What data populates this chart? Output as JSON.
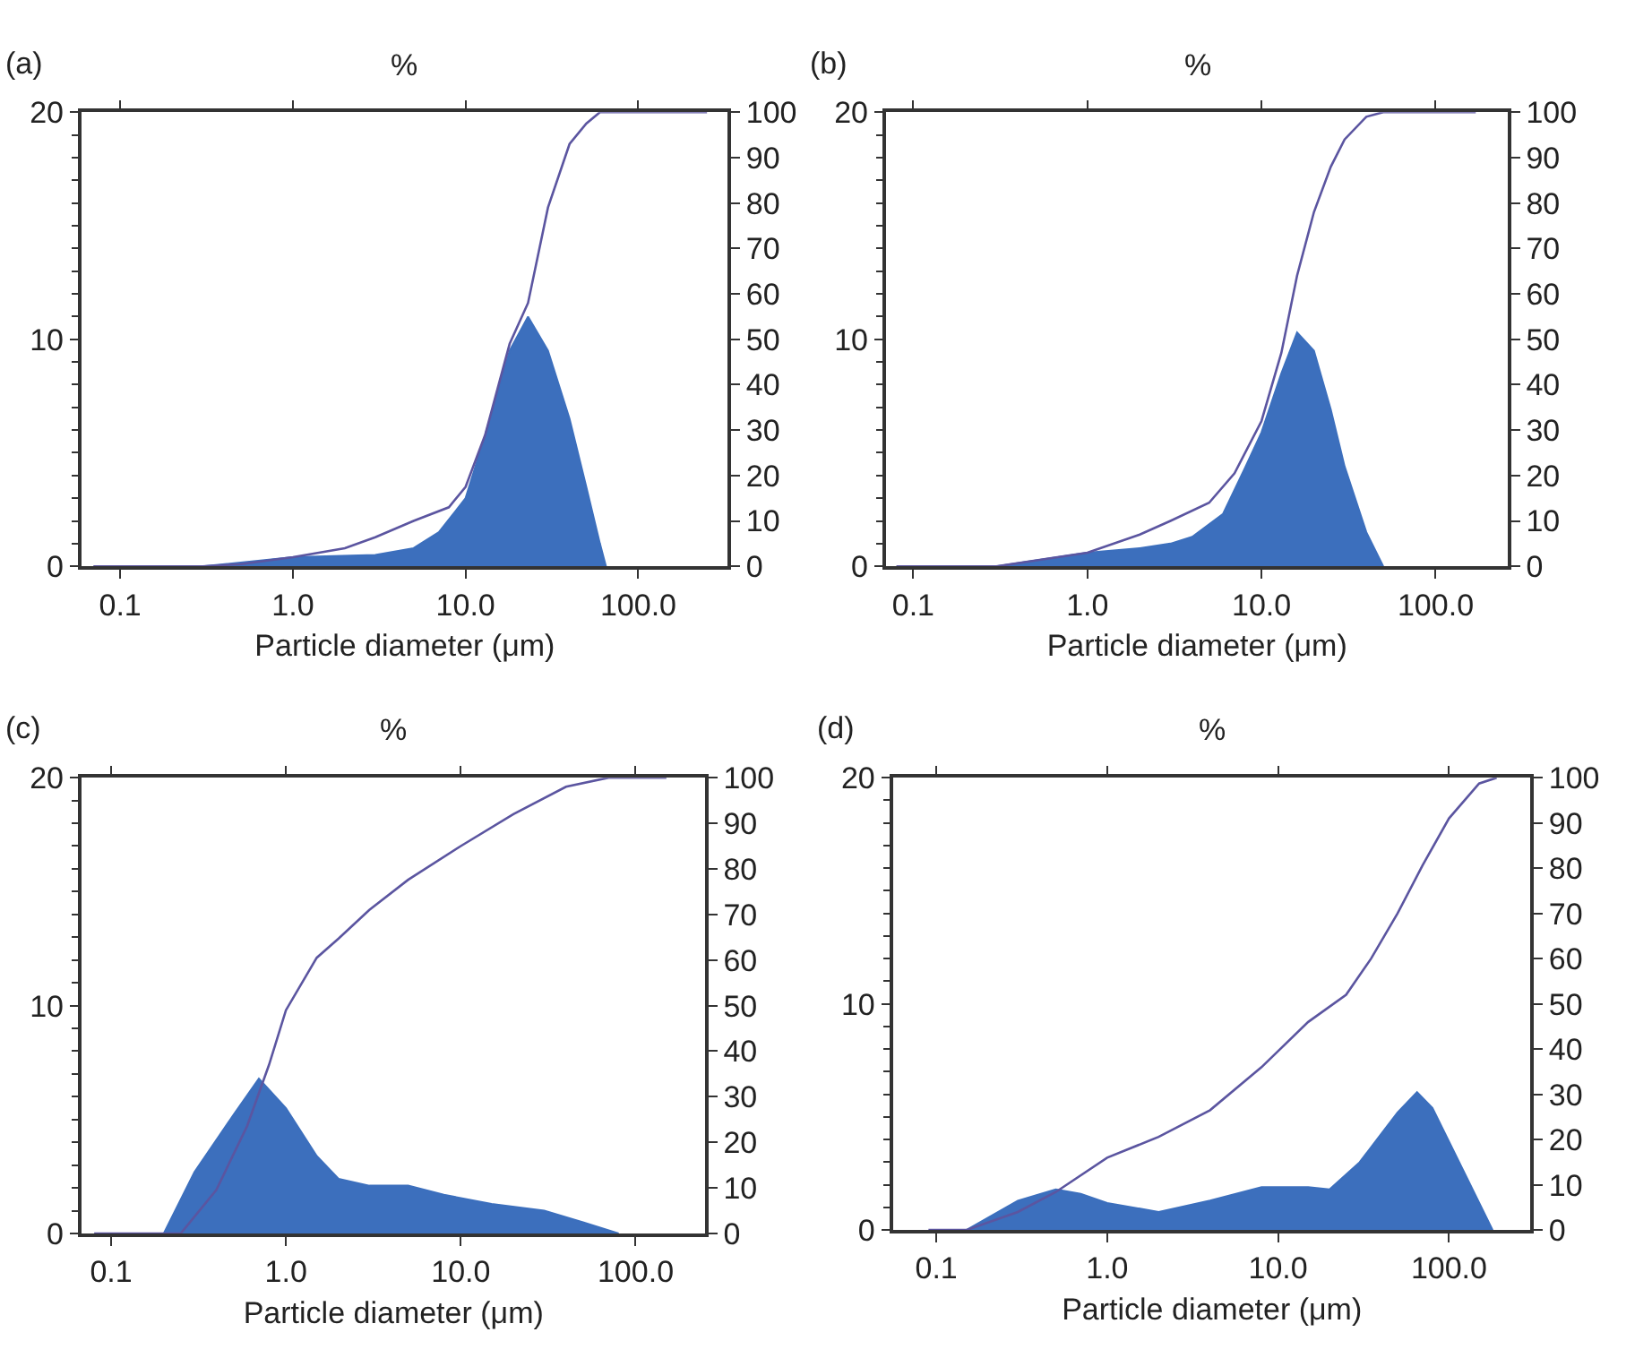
{
  "chart_data": [
    {
      "type": "area",
      "title": "(a)",
      "ylabel": "%",
      "xlabel": "Particle diameter (μm)",
      "log": "x",
      "xlim": [
        0.06,
        330
      ],
      "xticks": [
        {
          "value": 0.1,
          "label": "0.1"
        },
        {
          "value": 1,
          "label": "1.0"
        },
        {
          "value": 10,
          "label": "10.0"
        },
        {
          "value": 100,
          "label": "100.0"
        }
      ],
      "ylim": [
        0,
        20
      ],
      "yticks": [
        0,
        10,
        20
      ],
      "y2lim": [
        0,
        100
      ],
      "y2ticks": [
        0,
        10,
        20,
        30,
        40,
        50,
        60,
        70,
        80,
        90,
        100
      ],
      "series": [
        {
          "color": "#3c6fbd",
          "x": [
            0.3,
            1.0,
            3.0,
            5.0,
            7.0,
            10,
            13,
            18,
            23,
            30,
            40,
            50,
            60,
            65
          ],
          "values": [
            0,
            0.4,
            0.5,
            0.8,
            1.5,
            3.0,
            5.8,
            9.5,
            11,
            9.5,
            6.5,
            3.5,
            1,
            0
          ]
        },
        {
          "type": "line",
          "axis": "y2",
          "color": "#5b55a0",
          "x": [
            0.07,
            0.3,
            0.5,
            1.0,
            2,
            3,
            5,
            8,
            10,
            13,
            18,
            23,
            30,
            40,
            50,
            60,
            250
          ],
          "values": [
            0,
            0,
            0.5,
            2,
            4,
            6.4,
            10,
            13,
            17.5,
            29,
            49,
            58,
            79,
            93,
            97.5,
            100,
            100
          ]
        }
      ]
    },
    {
      "type": "area",
      "title": "(b)",
      "ylabel": "%",
      "xlabel": "Particle diameter (μm)",
      "log": "x",
      "xlim": [
        0.07,
        260
      ],
      "xticks": [
        {
          "value": 0.1,
          "label": "0.1"
        },
        {
          "value": 1,
          "label": "1.0"
        },
        {
          "value": 10,
          "label": "10.0"
        },
        {
          "value": 100,
          "label": "100.0"
        }
      ],
      "ylim": [
        0,
        20
      ],
      "yticks": [
        0,
        10,
        20
      ],
      "y2lim": [
        0,
        100
      ],
      "y2ticks": [
        0,
        10,
        20,
        30,
        40,
        50,
        60,
        70,
        80,
        90,
        100
      ],
      "series": [
        {
          "color": "#3c6fbd",
          "x": [
            0.3,
            1.0,
            2,
            3,
            4,
            6,
            8,
            10,
            13,
            16,
            20,
            25,
            30,
            40,
            50
          ],
          "values": [
            0,
            0.6,
            0.8,
            1,
            1.3,
            2.3,
            4.3,
            5.9,
            8.5,
            10.3,
            9.5,
            6.9,
            4.4,
            1.5,
            0
          ]
        },
        {
          "type": "line",
          "axis": "y2",
          "color": "#5b55a0",
          "x": [
            0.08,
            0.3,
            1.0,
            2,
            3,
            5,
            7,
            10,
            13,
            16,
            20,
            25,
            30,
            40,
            50,
            170
          ],
          "values": [
            0,
            0,
            3,
            7,
            10,
            14,
            20.5,
            32,
            47,
            64,
            78,
            88,
            94,
            99,
            100,
            100
          ]
        }
      ]
    },
    {
      "type": "area",
      "title": "(c)",
      "ylabel": "%",
      "xlabel": "Particle diameter (μm)",
      "log": "x",
      "xlim": [
        0.068,
        250
      ],
      "xticks": [
        {
          "value": 0.1,
          "label": "0.1"
        },
        {
          "value": 1,
          "label": "1.0"
        },
        {
          "value": 10,
          "label": "10.0"
        },
        {
          "value": 100,
          "label": "100.0"
        }
      ],
      "ylim": [
        0,
        20
      ],
      "yticks": [
        0,
        10,
        20
      ],
      "y2lim": [
        0,
        100
      ],
      "y2ticks": [
        0,
        10,
        20,
        30,
        40,
        50,
        60,
        70,
        80,
        90,
        100
      ],
      "series": [
        {
          "color": "#3c6fbd",
          "x": [
            0.2,
            0.3,
            0.5,
            0.7,
            1.0,
            1.5,
            2,
            3,
            5,
            8,
            15,
            30,
            50,
            80
          ],
          "values": [
            0,
            2.7,
            5.2,
            6.8,
            5.5,
            3.4,
            2.4,
            2.1,
            2.1,
            1.7,
            1.3,
            1.0,
            0.5,
            0
          ]
        },
        {
          "type": "line",
          "axis": "y2",
          "color": "#5b55a0",
          "x": [
            0.08,
            0.25,
            0.4,
            0.6,
            0.8,
            1.0,
            1.5,
            2,
            3,
            5,
            10,
            20,
            40,
            70,
            150
          ],
          "values": [
            0,
            0,
            9.6,
            23.6,
            37,
            49,
            60.5,
            64.7,
            71,
            77.6,
            85,
            92,
            98,
            100,
            100
          ]
        }
      ]
    },
    {
      "type": "area",
      "title": "(d)",
      "ylabel": "%",
      "xlabel": "Particle diameter (μm)",
      "log": "x",
      "xlim": [
        0.056,
        300
      ],
      "xticks": [
        {
          "value": 0.1,
          "label": "0.1"
        },
        {
          "value": 1,
          "label": "1.0"
        },
        {
          "value": 10,
          "label": "10.0"
        },
        {
          "value": 100,
          "label": "100.0"
        }
      ],
      "ylim": [
        0,
        20
      ],
      "yticks": [
        0,
        10,
        20
      ],
      "y2lim": [
        0,
        100
      ],
      "y2ticks": [
        0,
        10,
        20,
        30,
        40,
        50,
        60,
        70,
        80,
        90,
        100
      ],
      "series": [
        {
          "color": "#3c6fbd",
          "x": [
            0.15,
            0.3,
            0.5,
            0.7,
            1.0,
            2,
            4,
            8,
            15,
            20,
            30,
            50,
            65,
            80,
            120,
            180
          ],
          "values": [
            0,
            1.3,
            1.8,
            1.6,
            1.2,
            0.8,
            1.3,
            1.9,
            1.9,
            1.8,
            3.0,
            5.2,
            6.1,
            5.4,
            2.7,
            0
          ]
        },
        {
          "type": "line",
          "axis": "y2",
          "color": "#5b55a0",
          "x": [
            0.09,
            0.15,
            0.3,
            0.5,
            1.0,
            2,
            4,
            8,
            15,
            25,
            35,
            50,
            70,
            100,
            150,
            190
          ],
          "values": [
            0,
            0,
            4,
            8.4,
            16,
            20.6,
            26.5,
            36,
            46,
            52,
            60,
            70,
            80.6,
            91,
            98.7,
            100
          ]
        }
      ]
    }
  ]
}
